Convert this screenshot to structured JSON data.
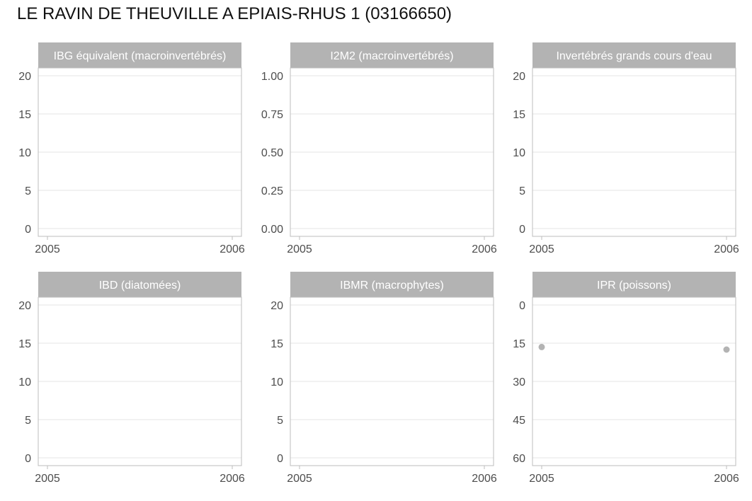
{
  "title": "LE RAVIN DE THEUVILLE A EPIAIS-RHUS 1 (03166650)",
  "colors": {
    "strip": "#b3b3b3",
    "panel_border": "#bdbdbd",
    "grid": "#e5e5e5",
    "point": "#b3b3b3",
    "tick_text": "#4d4d4d"
  },
  "chart_data": [
    {
      "type": "scatter",
      "title": "IBG équivalent (macroinvertébrés)",
      "x_ticks": [
        "2005",
        "2006"
      ],
      "xlim": [
        2005,
        2006
      ],
      "ylim": [
        0,
        20
      ],
      "y_reversed": false,
      "y_ticks": [
        "0",
        "5",
        "10",
        "15",
        "20"
      ],
      "points": []
    },
    {
      "type": "scatter",
      "title": "I2M2 (macroinvertébrés)",
      "x_ticks": [
        "2005",
        "2006"
      ],
      "xlim": [
        2005,
        2006
      ],
      "ylim": [
        0,
        1
      ],
      "y_reversed": false,
      "y_ticks": [
        "0.00",
        "0.25",
        "0.50",
        "0.75",
        "1.00"
      ],
      "points": []
    },
    {
      "type": "scatter",
      "title": "Invertébrés grands cours d'eau",
      "x_ticks": [
        "2005",
        "2006"
      ],
      "xlim": [
        2005,
        2006
      ],
      "ylim": [
        0,
        20
      ],
      "y_reversed": false,
      "y_ticks": [
        "0",
        "5",
        "10",
        "15",
        "20"
      ],
      "points": []
    },
    {
      "type": "scatter",
      "title": "IBD (diatomées)",
      "x_ticks": [
        "2005",
        "2006"
      ],
      "xlim": [
        2005,
        2006
      ],
      "ylim": [
        0,
        20
      ],
      "y_reversed": false,
      "y_ticks": [
        "0",
        "5",
        "10",
        "15",
        "20"
      ],
      "points": []
    },
    {
      "type": "scatter",
      "title": "IBMR (macrophytes)",
      "x_ticks": [
        "2005",
        "2006"
      ],
      "xlim": [
        2005,
        2006
      ],
      "ylim": [
        0,
        20
      ],
      "y_reversed": false,
      "y_ticks": [
        "0",
        "5",
        "10",
        "15",
        "20"
      ],
      "points": []
    },
    {
      "type": "scatter",
      "title": "IPR (poissons)",
      "x_ticks": [
        "2005",
        "2006"
      ],
      "xlim": [
        2005,
        2006
      ],
      "ylim": [
        0,
        60
      ],
      "y_reversed": true,
      "y_ticks": [
        "0",
        "15",
        "30",
        "45",
        "60"
      ],
      "points": [
        {
          "x": 2005,
          "y": 16.5
        },
        {
          "x": 2006,
          "y": 17.5
        }
      ]
    }
  ]
}
